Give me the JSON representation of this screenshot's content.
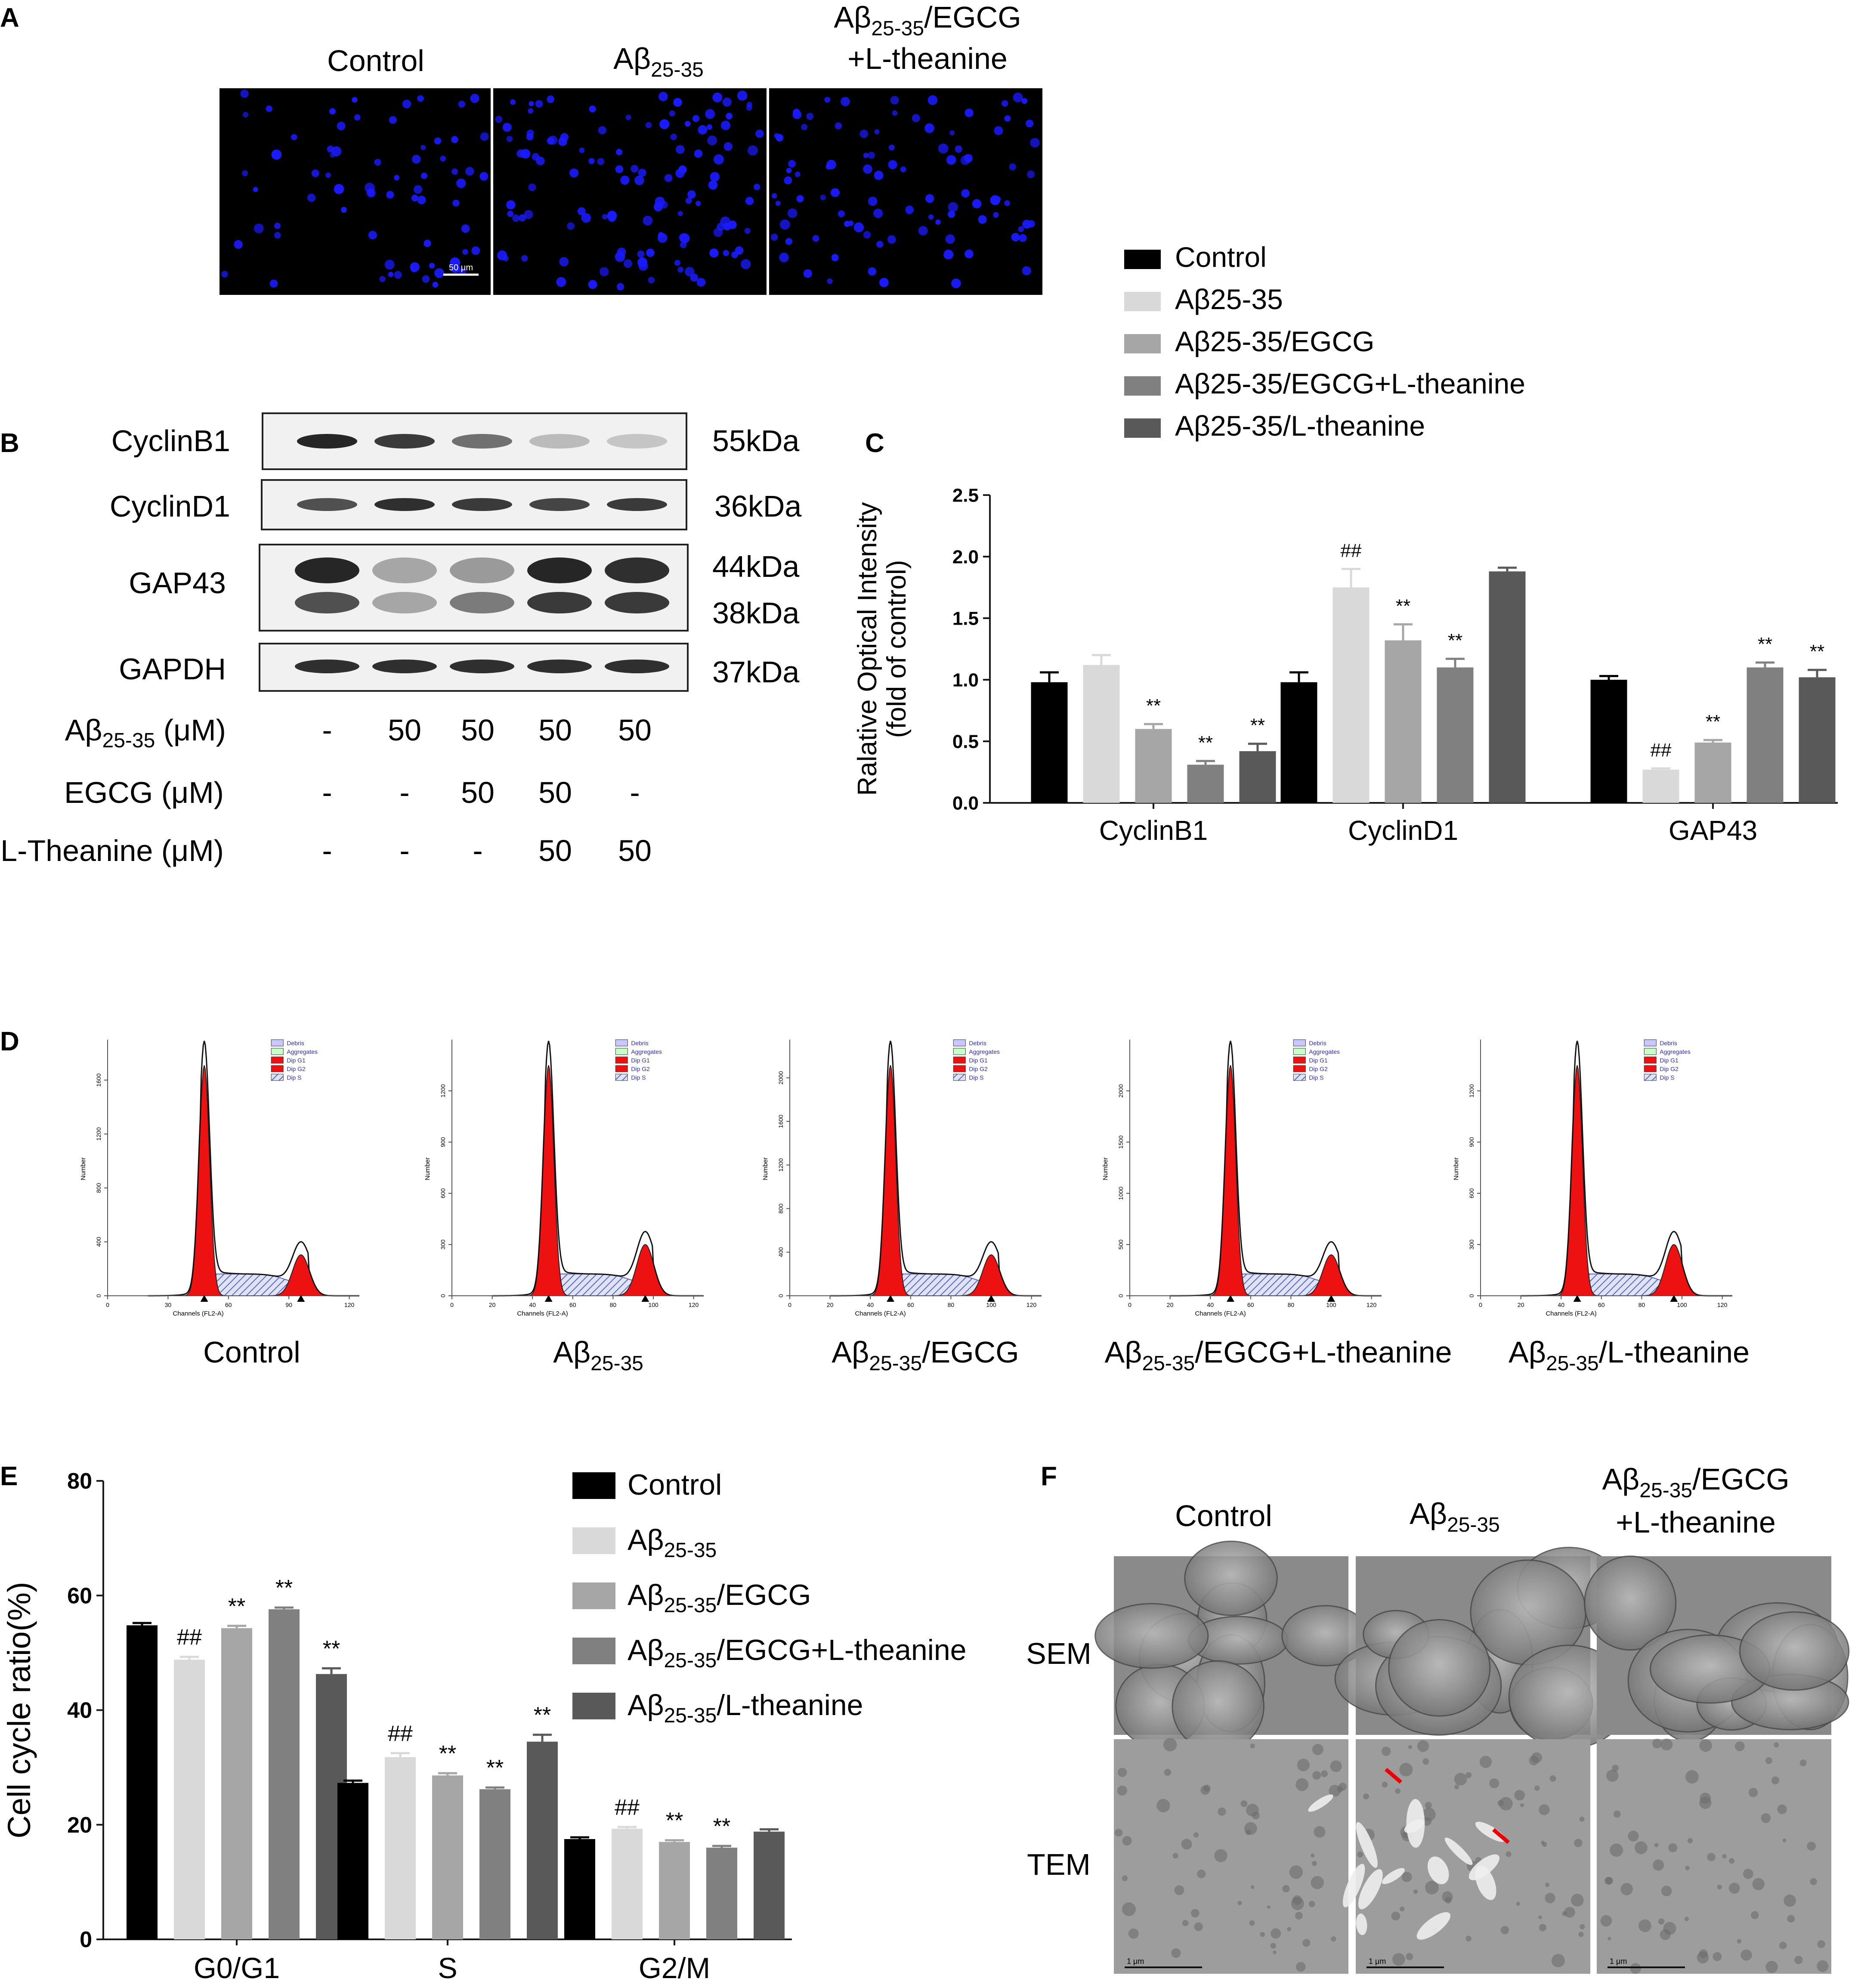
{
  "panel_labels": {
    "A": "A",
    "B": "B",
    "C": "C",
    "D": "D",
    "E": "E",
    "F": "F"
  },
  "colors": {
    "control": "#000000",
    "abeta": "#d9d9d9",
    "egcg": "#a6a6a6",
    "egcg_lthea": "#808080",
    "lthea": "#595959",
    "nuclei": "#1a1aff",
    "histogram_red": "#ee1111",
    "scale_bar": "#ffffff"
  },
  "panel_a": {
    "headers": [
      {
        "base": "Aβ",
        "sub": "",
        "rest": "",
        "line2": "",
        "plain": "Control"
      },
      {
        "base": "Aβ",
        "sub": "25-35",
        "rest": "",
        "line2": "",
        "plain": ""
      },
      {
        "base": "Aβ",
        "sub": "25-35",
        "rest": "/EGCG",
        "line2": "+L-theanine",
        "plain": ""
      }
    ],
    "scale_bar": "50 μm"
  },
  "panel_b": {
    "proteins": [
      "CyclinB1",
      "CyclinD1",
      "GAP43",
      "GAPDH"
    ],
    "weights": [
      "55kDa",
      "36kDa",
      "44kDa",
      "38kDa",
      "37kDa"
    ],
    "rows": [
      {
        "label_base": "Aβ",
        "label_sub": "25-35",
        "label_rest": " (μM)",
        "values": [
          "-",
          "50",
          "50",
          "50",
          "50"
        ]
      },
      {
        "label_base": "EGCG (μM)",
        "label_sub": "",
        "label_rest": "",
        "values": [
          "-",
          "-",
          "50",
          "50",
          "-"
        ]
      },
      {
        "label_base": "L-Theanine (μM)",
        "label_sub": "",
        "label_rest": "",
        "values": [
          "-",
          "-",
          "-",
          "50",
          "50"
        ]
      }
    ]
  },
  "panel_c_legend": [
    "Control",
    "Aβ25-35",
    "Aβ25-35/EGCG",
    "Aβ25-35/EGCG+L-theanine",
    "Aβ25-35/L-theanine"
  ],
  "panel_d": {
    "legend_items": [
      "Debris",
      "Aggregates",
      "Dip G1",
      "Dip G2",
      "Dip S"
    ],
    "xlabel": "Channels (FL2-A)",
    "ylabel": "Number",
    "captions": [
      {
        "base": "Control",
        "sub": "",
        "rest": ""
      },
      {
        "base": "Aβ",
        "sub": "25-35",
        "rest": ""
      },
      {
        "base": "Aβ",
        "sub": "25-35",
        "rest": "/EGCG"
      },
      {
        "base": "Aβ",
        "sub": "25-35",
        "rest": "/EGCG+L-theanine"
      },
      {
        "base": "Aβ",
        "sub": "25-35",
        "rest": "/L-theanine"
      }
    ],
    "histograms": [
      {
        "xticks": [
          "0",
          "30",
          "60",
          "90",
          "120"
        ],
        "xtick_vals": [
          0,
          30,
          60,
          90,
          120
        ],
        "yticks": [
          "0",
          "400",
          "800",
          "1200",
          "1600"
        ],
        "ymax": 1900,
        "g1": 48,
        "g2": 96
      },
      {
        "xticks": [
          "0",
          "20",
          "40",
          "60",
          "80",
          "100",
          "120"
        ],
        "xtick_vals": [
          0,
          20,
          40,
          60,
          80,
          100,
          120
        ],
        "yticks": [
          "0",
          "300",
          "600",
          "900",
          "1200"
        ],
        "ymax": 1500,
        "g1": 48,
        "g2": 96
      },
      {
        "xticks": [
          "0",
          "20",
          "40",
          "60",
          "80",
          "100",
          "120"
        ],
        "xtick_vals": [
          0,
          20,
          40,
          60,
          80,
          100,
          120
        ],
        "yticks": [
          "0",
          "400",
          "800",
          "1200",
          "1600",
          "2000"
        ],
        "ymax": 2350,
        "g1": 50,
        "g2": 100
      },
      {
        "xticks": [
          "0",
          "20",
          "40",
          "60",
          "80",
          "100",
          "120"
        ],
        "xtick_vals": [
          0,
          20,
          40,
          60,
          80,
          100,
          120
        ],
        "yticks": [
          "0",
          "500",
          "1000",
          "1500",
          "2000"
        ],
        "ymax": 2500,
        "g1": 50,
        "g2": 100
      },
      {
        "xticks": [
          "0",
          "20",
          "40",
          "60",
          "80",
          "100",
          "120"
        ],
        "xtick_vals": [
          0,
          20,
          40,
          60,
          80,
          100,
          120
        ],
        "yticks": [
          "0",
          "300",
          "600",
          "900",
          "1200"
        ],
        "ymax": 1500,
        "g1": 48,
        "g2": 96
      }
    ]
  },
  "panel_e_legend": [
    {
      "base": "Control",
      "sub": "",
      "rest": ""
    },
    {
      "base": "Aβ",
      "sub": "25-35",
      "rest": ""
    },
    {
      "base": "Aβ",
      "sub": "25-35",
      "rest": "/EGCG"
    },
    {
      "base": "Aβ",
      "sub": "25-35",
      "rest": "/EGCG+L-theanine"
    },
    {
      "base": "Aβ",
      "sub": "25-35",
      "rest": "/L-theanine"
    }
  ],
  "panel_f": {
    "headers": [
      {
        "base": "Control",
        "sub": "",
        "rest": "",
        "line2": ""
      },
      {
        "base": "Aβ",
        "sub": "25-35",
        "rest": "",
        "line2": ""
      },
      {
        "base": "Aβ",
        "sub": "25-35",
        "rest": "/EGCG",
        "line2": "+L-theanine"
      }
    ],
    "row_labels": [
      "SEM",
      "TEM"
    ],
    "scale_label": "1 μm"
  },
  "chart_data": [
    {
      "type": "bar",
      "title": "",
      "ylabel": "Ralative Optical Intensity\n(fold of control)",
      "xlabel": "",
      "ylim": [
        0,
        2.5
      ],
      "yticks": [
        "0.0",
        "0.5",
        "1.0",
        "1.5",
        "2.0",
        "2.5"
      ],
      "categories": [
        "CyclinB1",
        "CyclinD1",
        "GAP43"
      ],
      "legend_position": "top-right",
      "series": [
        {
          "name": "Control",
          "values": [
            0.98,
            0.98,
            1.0
          ],
          "errors": [
            0.08,
            0.08,
            0.03
          ],
          "marks": [
            "",
            "",
            ""
          ]
        },
        {
          "name": "Aβ25-35",
          "values": [
            1.12,
            1.75,
            0.27
          ],
          "errors": [
            0.08,
            0.15,
            0.01
          ],
          "marks": [
            "",
            "##",
            "##"
          ]
        },
        {
          "name": "Aβ25-35/EGCG",
          "values": [
            0.6,
            1.32,
            0.49
          ],
          "errors": [
            0.04,
            0.13,
            0.02
          ],
          "marks": [
            "**",
            "**",
            "**"
          ]
        },
        {
          "name": "Aβ25-35/EGCG+L-theanine",
          "values": [
            0.31,
            1.1,
            1.1
          ],
          "errors": [
            0.03,
            0.07,
            0.04
          ],
          "marks": [
            "**",
            "**",
            "**"
          ]
        },
        {
          "name": "Aβ25-35/L-theanine",
          "values": [
            0.42,
            1.88,
            1.02
          ],
          "errors": [
            0.06,
            0.03,
            0.06
          ],
          "marks": [
            "**",
            "",
            "**"
          ]
        }
      ]
    },
    {
      "type": "bar",
      "title": "",
      "ylabel": "Cell cycle ratio(%)",
      "xlabel": "",
      "ylim": [
        0,
        80
      ],
      "yticks": [
        "0",
        "20",
        "40",
        "60",
        "80"
      ],
      "categories": [
        "G0/G1",
        "S",
        "G2/M"
      ],
      "legend_position": "top-right",
      "series": [
        {
          "name": "Control",
          "values": [
            54.8,
            27.3,
            17.5
          ],
          "errors": [
            0.4,
            0.4,
            0.3
          ],
          "marks": [
            "",
            "",
            ""
          ]
        },
        {
          "name": "Aβ25-35",
          "values": [
            48.8,
            31.8,
            19.3
          ],
          "errors": [
            0.5,
            0.7,
            0.3
          ],
          "marks": [
            "##",
            "##",
            "##"
          ]
        },
        {
          "name": "Aβ25-35/EGCG",
          "values": [
            54.3,
            28.6,
            17.0
          ],
          "errors": [
            0.4,
            0.4,
            0.3
          ],
          "marks": [
            "**",
            "**",
            "**"
          ]
        },
        {
          "name": "Aβ25-35/EGCG+L-theanine",
          "values": [
            57.6,
            26.2,
            16.0
          ],
          "errors": [
            0.3,
            0.3,
            0.3
          ],
          "marks": [
            "**",
            "**",
            "**"
          ]
        },
        {
          "name": "Aβ25-35/L-theanine",
          "values": [
            46.3,
            34.5,
            18.8
          ],
          "errors": [
            1.0,
            1.2,
            0.4
          ],
          "marks": [
            "**",
            "**",
            ""
          ]
        }
      ]
    }
  ]
}
